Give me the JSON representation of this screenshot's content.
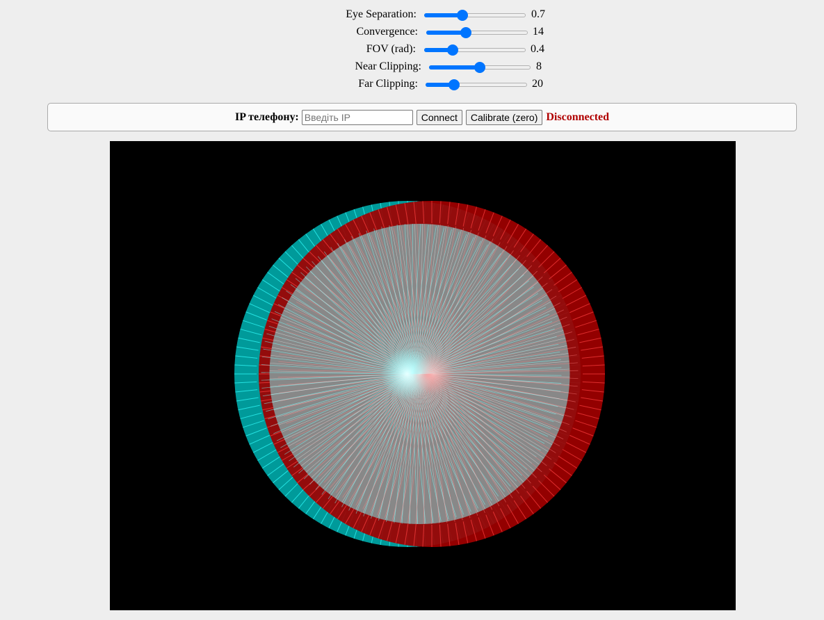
{
  "sliders": [
    {
      "label": "Eye Separation:",
      "value": "0.7",
      "fraction": 0.36
    },
    {
      "label": "Convergence:",
      "value": "14",
      "fraction": 0.38
    },
    {
      "label": "FOV (rad):",
      "value": "0.4",
      "fraction": 0.25
    },
    {
      "label": "Near Clipping:",
      "value": "8",
      "fraction": 0.5
    },
    {
      "label": "Far Clipping:",
      "value": "20",
      "fraction": 0.25
    }
  ],
  "connection": {
    "ip_label": "IP телефону:",
    "ip_value": "",
    "ip_placeholder": "Введіть IP",
    "connect_label": "Connect",
    "calibrate_label": "Calibrate (zero)",
    "status_text": "Disconnected",
    "status_color": "#b00000"
  },
  "scene": {
    "background": "#000000",
    "left_eye_color": "#00e0e0",
    "right_eye_color": "#cc0000",
    "core_color": "#888888",
    "spoke_count": 120
  },
  "colors": {
    "page_background": "#eeeeee",
    "accent": "#0075ff"
  }
}
